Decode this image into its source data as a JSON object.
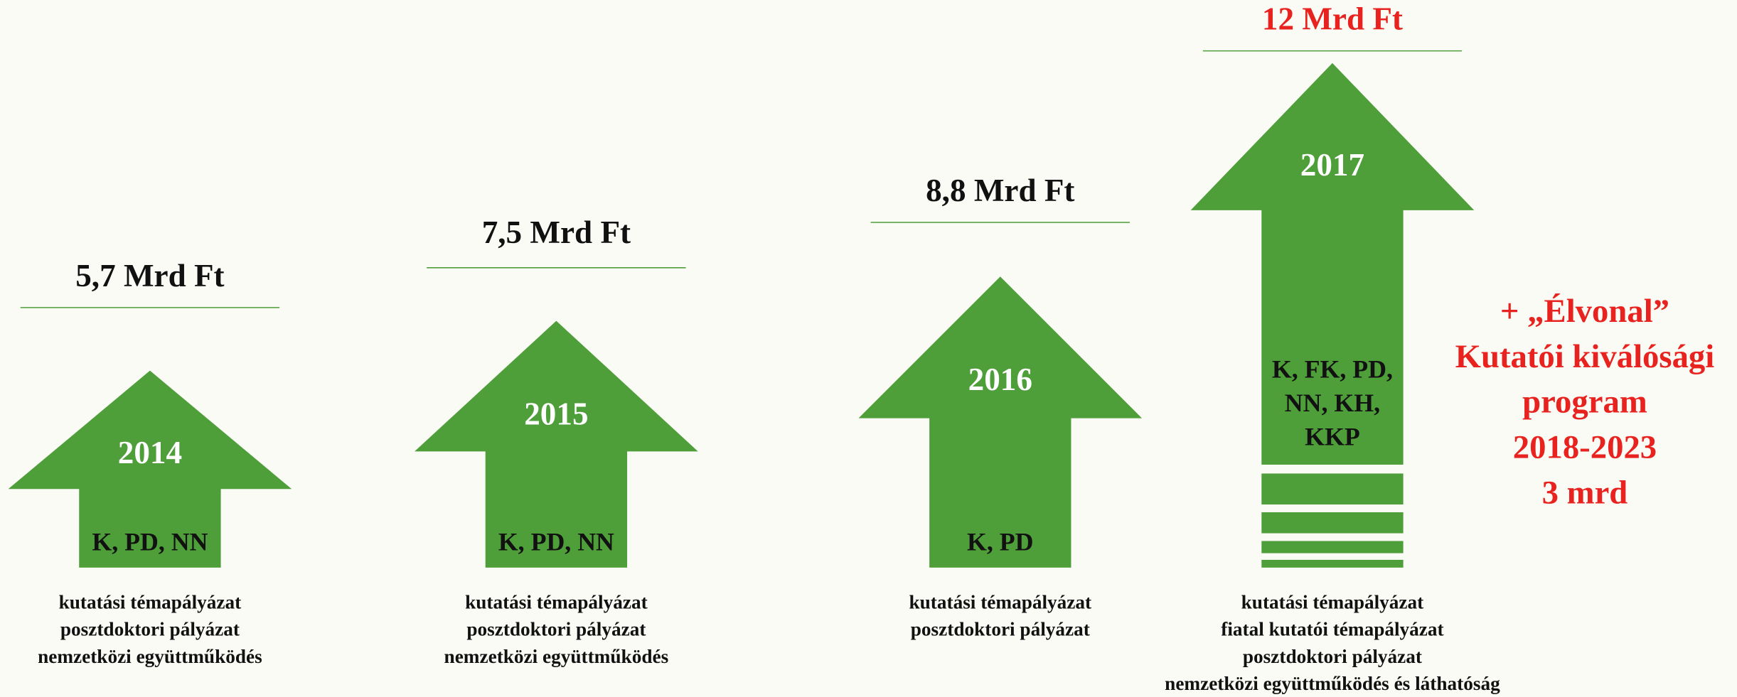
{
  "columns": [
    {
      "amount": "5,7 Mrd Ft",
      "year": "2014",
      "codes": [
        "K, PD, NN"
      ],
      "descriptions": [
        "kutatási témapályázat",
        "posztdoktori pályázat",
        "nemzetközi együttműködés"
      ]
    },
    {
      "amount": "7,5 Mrd Ft",
      "year": "2015",
      "codes": [
        "K, PD, NN"
      ],
      "descriptions": [
        "kutatási témapályázat",
        "posztdoktori pályázat",
        "nemzetközi együttműködés"
      ]
    },
    {
      "amount": "8,8 Mrd Ft",
      "year": "2016",
      "codes": [
        "K, PD"
      ],
      "descriptions": [
        "kutatási témapályázat",
        "posztdoktori pályázat"
      ]
    },
    {
      "amount": "12 Mrd Ft",
      "year": "2017",
      "codes": [
        "K, FK, PD,",
        "NN, KH,",
        "KKP"
      ],
      "descriptions": [
        "kutatási témapályázat",
        "fiatal kutatói témapályázat",
        "posztdoktori pályázat",
        "nemzetközi együttműködés és láthatóság"
      ]
    }
  ],
  "side_note": [
    "+ „Élvonal”",
    "Kutatói kiválósági",
    "program",
    "2018-2023",
    "3 mrd"
  ]
}
